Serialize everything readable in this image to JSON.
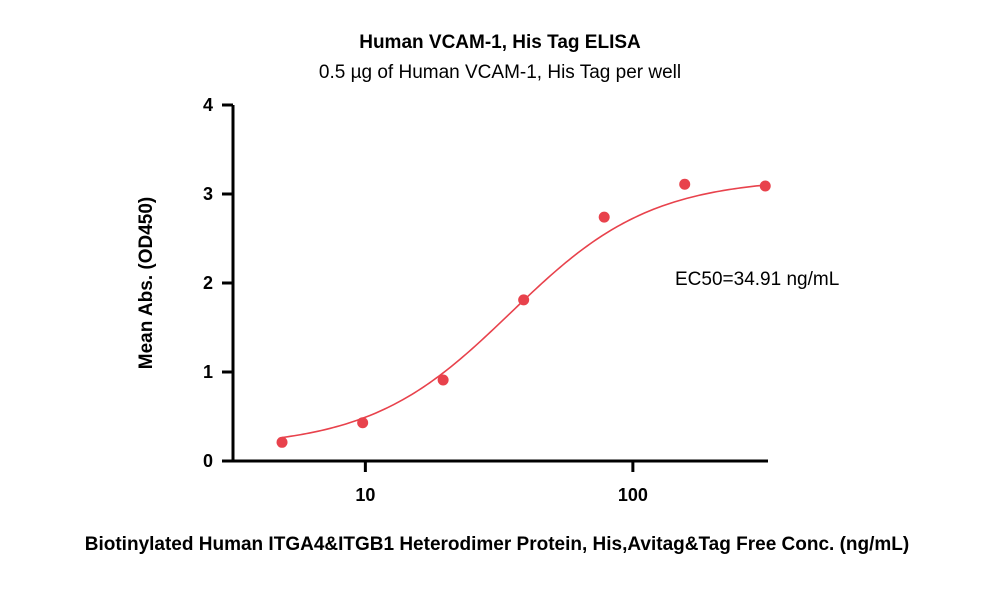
{
  "chart_data": {
    "type": "scatter",
    "title": "Human VCAM-1, His Tag ELISA",
    "subtitle": "0.5 µg of Human VCAM-1, His Tag per well",
    "xlabel": "Biotinylated Human ITGA4&ITGB1 Heterodimer Protein, His,Avitag&Tag Free Conc. (ng/mL)",
    "ylabel": "Mean Abs. (OD450)",
    "xscale": "log",
    "xlim": [
      3.2,
      320
    ],
    "ylim": [
      0,
      4
    ],
    "x_ticks": [
      10,
      100
    ],
    "x_tick_labels": [
      "10",
      "100"
    ],
    "y_ticks": [
      0,
      1,
      2,
      3,
      4
    ],
    "y_tick_labels": [
      "0",
      "1",
      "2",
      "3",
      "4"
    ],
    "grid": false,
    "legend": "none",
    "annotation": "EC50=34.91 ng/mL",
    "series": [
      {
        "x": [
          4.88,
          9.77,
          19.53,
          39.06,
          78.13,
          156.25,
          312.5
        ],
        "y": [
          0.21,
          0.43,
          0.91,
          1.81,
          2.74,
          3.11,
          3.09
        ]
      }
    ],
    "fit": {
      "model": "4PL",
      "bottom": 0.15,
      "top": 3.18,
      "ec50": 34.91,
      "hill": 1.65
    },
    "colors": {
      "marker": "#e8424c",
      "curve": "#e8424c",
      "axis": "#000000"
    }
  }
}
